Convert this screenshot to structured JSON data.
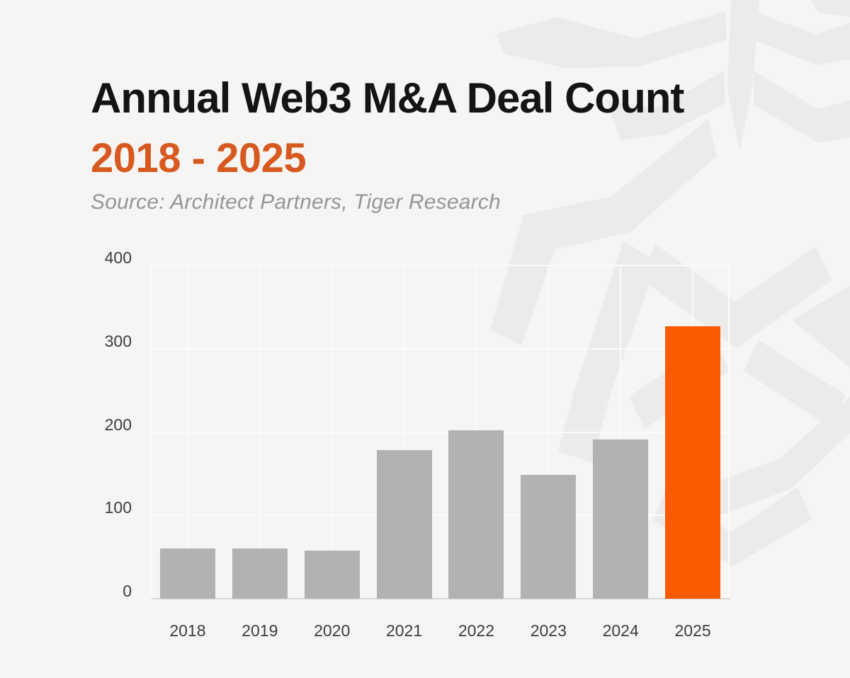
{
  "chart_data": {
    "type": "bar",
    "title": "Annual Web3 M&A Deal Count",
    "subtitle": "2018 - 2025",
    "source": "Source: Architect Partners, Tiger Research",
    "categories": [
      "2018",
      "2019",
      "2020",
      "2021",
      "2022",
      "2023",
      "2024",
      "2025"
    ],
    "series": [
      {
        "name": "Annual Web3 M&A deal count",
        "values": [
          60,
          60,
          58,
          178,
          202,
          149,
          191,
          327
        ]
      }
    ],
    "highlight_category": "2025",
    "xlabel": "",
    "ylabel": "",
    "ylim": [
      0,
      400
    ],
    "yticks": [
      0,
      100,
      200,
      300,
      400
    ],
    "grid": true,
    "legend": false
  },
  "colors": {
    "background": "#F6F5F4",
    "title_text": "#141414",
    "subtitle_orange": "#D8591F",
    "source_text": "#969594",
    "bar_gray": "#B3B2B1",
    "bar_highlight_orange": "#FA5A00",
    "axis_text": "#3D3D3D",
    "gridline_white": "#FBFBFA",
    "baseline_gray": "#D9D8D6",
    "watermark_gray": "#ECEBE9"
  },
  "watermark": {
    "description": "tiger-face-logo-watermark"
  }
}
